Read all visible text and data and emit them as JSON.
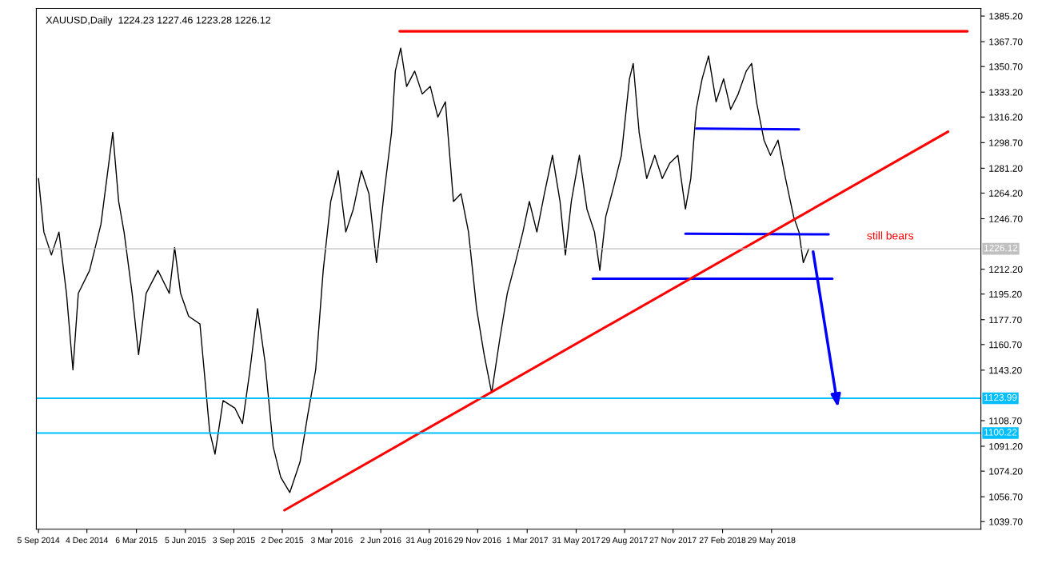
{
  "chart_data": {
    "type": "line",
    "title": "XAUUSD,Daily  1224.23 1227.46 1223.28 1226.12",
    "series": [
      {
        "color": "#000000",
        "x": [
          "2014-09-05",
          "2014-09-15",
          "2014-09-29",
          "2014-10-13",
          "2014-10-27",
          "2014-11-08",
          "2014-11-18",
          "2014-12-09",
          "2014-12-30",
          "2015-01-21",
          "2015-02-01",
          "2015-02-11",
          "2015-02-26",
          "2015-03-10",
          "2015-03-24",
          "2015-04-15",
          "2015-05-06",
          "2015-05-16",
          "2015-05-27",
          "2015-06-11",
          "2015-07-02",
          "2015-07-20",
          "2015-07-30",
          "2015-08-14",
          "2015-09-05",
          "2015-09-19",
          "2015-10-03",
          "2015-10-17",
          "2015-10-31",
          "2015-11-15",
          "2015-11-29",
          "2015-12-16",
          "2016-01-04",
          "2016-01-18",
          "2016-02-02",
          "2016-02-16",
          "2016-03-01",
          "2016-03-15",
          "2016-03-29",
          "2016-04-12",
          "2016-04-27",
          "2016-05-11",
          "2016-05-25",
          "2016-06-08",
          "2016-06-22",
          "2016-06-29",
          "2016-07-09",
          "2016-07-20",
          "2016-08-04",
          "2016-08-18",
          "2016-09-02",
          "2016-09-16",
          "2016-09-30",
          "2016-10-15",
          "2016-10-29",
          "2016-11-12",
          "2016-11-27",
          "2016-12-11",
          "2016-12-25",
          "2017-01-09",
          "2017-01-23",
          "2017-02-07",
          "2017-02-21",
          "2017-03-05",
          "2017-03-19",
          "2017-04-02",
          "2017-04-17",
          "2017-05-01",
          "2017-05-11",
          "2017-05-22",
          "2017-06-06",
          "2017-06-20",
          "2017-07-04",
          "2017-07-14",
          "2017-07-25",
          "2017-08-09",
          "2017-08-23",
          "2017-09-07",
          "2017-09-14",
          "2017-09-25",
          "2017-10-09",
          "2017-10-24",
          "2017-11-07",
          "2017-11-21",
          "2017-12-06",
          "2017-12-20",
          "2017-12-30",
          "2018-01-09",
          "2018-01-20",
          "2018-02-01",
          "2018-02-15",
          "2018-03-01",
          "2018-03-14",
          "2018-03-28",
          "2018-04-12",
          "2018-04-22",
          "2018-05-01",
          "2018-05-15",
          "2018-05-27",
          "2018-06-10",
          "2018-06-24",
          "2018-07-09",
          "2018-07-19",
          "2018-07-27",
          "2018-08-06"
        ],
        "values": [
          1274.2,
          1237.6,
          1221.9,
          1237.6,
          1195.7,
          1143.4,
          1195.7,
          1211.4,
          1242.8,
          1305.7,
          1258.5,
          1237.6,
          1195.7,
          1153.8,
          1195.7,
          1211.4,
          1195.7,
          1227.1,
          1195.7,
          1180.0,
          1174.8,
          1101.5,
          1085.8,
          1122.4,
          1117.2,
          1106.7,
          1143.4,
          1185.3,
          1148.6,
          1091.0,
          1070.1,
          1059.6,
          1080.5,
          1112.0,
          1143.4,
          1211.4,
          1258.5,
          1279.5,
          1237.6,
          1253.3,
          1279.5,
          1263.8,
          1216.7,
          1263.8,
          1305.7,
          1347.6,
          1363.3,
          1337.1,
          1347.6,
          1331.9,
          1337.1,
          1316.2,
          1326.6,
          1258.5,
          1263.8,
          1237.6,
          1185.3,
          1153.8,
          1127.6,
          1164.3,
          1195.7,
          1216.7,
          1237.6,
          1258.5,
          1237.6,
          1263.8,
          1290.0,
          1258.5,
          1221.9,
          1258.5,
          1290.0,
          1253.3,
          1237.6,
          1211.4,
          1248.1,
          1269.0,
          1290.0,
          1342.3,
          1352.8,
          1305.7,
          1274.2,
          1290.0,
          1274.2,
          1284.7,
          1290.0,
          1253.3,
          1274.2,
          1321.4,
          1342.3,
          1358.0,
          1326.6,
          1342.3,
          1321.4,
          1331.9,
          1347.6,
          1352.8,
          1326.6,
          1300.4,
          1290.0,
          1300.4,
          1274.2,
          1248.1,
          1237.6,
          1216.7,
          1226.1
        ]
      },
      {
        "type": "line",
        "color": "#ff0000",
        "x": [
          "2016-07-07",
          "2019-05-28"
        ],
        "values": [
          1374.8,
          1374.8
        ]
      },
      {
        "type": "line",
        "color": "#0000ff",
        "x": [
          "2018-01-09",
          "2018-07-19"
        ],
        "values": [
          1308.3,
          1307.8
        ]
      },
      {
        "type": "line",
        "color": "#0000ff",
        "x": [
          "2017-12-20",
          "2018-09-12"
        ],
        "values": [
          1236.5,
          1236.0
        ]
      },
      {
        "type": "line",
        "color": "#0000ff",
        "x": [
          "2017-07-01",
          "2018-09-19"
        ],
        "values": [
          1205.7,
          1205.7
        ]
      },
      {
        "type": "line",
        "color": "#ff0000",
        "x": [
          "2015-12-06",
          "2019-04-22"
        ],
        "values": [
          1047.5,
          1306.2
        ]
      }
    ],
    "xlim": [
      "2014-09-01",
      "2019-06-22"
    ],
    "xticks": [
      {
        "value": "2014-09-05",
        "label": "5 Sep 2014"
      },
      {
        "value": "2014-12-04",
        "label": "4 Dec 2014"
      },
      {
        "value": "2015-03-06",
        "label": "6 Mar 2015"
      },
      {
        "value": "2015-06-05",
        "label": "5 Jun 2015"
      },
      {
        "value": "2015-09-03",
        "label": "3 Sep 2015"
      },
      {
        "value": "2015-12-02",
        "label": "2 Dec 2015"
      },
      {
        "value": "2016-03-03",
        "label": "3 Mar 2016"
      },
      {
        "value": "2016-06-02",
        "label": "2 Jun 2016"
      },
      {
        "value": "2016-08-31",
        "label": "31 Aug 2016"
      },
      {
        "value": "2016-11-29",
        "label": "29 Nov 2016"
      },
      {
        "value": "2017-03-01",
        "label": "1 Mar 2017"
      },
      {
        "value": "2017-05-31",
        "label": "31 May 2017"
      },
      {
        "value": "2017-08-29",
        "label": "29 Aug 2017"
      },
      {
        "value": "2017-11-27",
        "label": "27 Nov 2017"
      },
      {
        "value": "2018-02-27",
        "label": "27 Feb 2018"
      },
      {
        "value": "2018-05-29",
        "label": "29 May 2018"
      }
    ],
    "ylim": [
      1034.5,
      1390.4
    ],
    "yticks": [
      {
        "value": 1385.2,
        "label": "1385.20"
      },
      {
        "value": 1367.7,
        "label": "1367.70"
      },
      {
        "value": 1350.7,
        "label": "1350.70"
      },
      {
        "value": 1333.2,
        "label": "1333.20"
      },
      {
        "value": 1316.2,
        "label": "1316.20"
      },
      {
        "value": 1298.7,
        "label": "1298.70"
      },
      {
        "value": 1281.2,
        "label": "1281.20"
      },
      {
        "value": 1264.2,
        "label": "1264.20"
      },
      {
        "value": 1246.7,
        "label": "1246.70"
      },
      {
        "value": 1212.2,
        "label": "1212.20"
      },
      {
        "value": 1195.2,
        "label": "1195.20"
      },
      {
        "value": 1177.7,
        "label": "1177.70"
      },
      {
        "value": 1160.7,
        "label": "1160.70"
      },
      {
        "value": 1143.2,
        "label": "1143.20"
      },
      {
        "value": 1108.7,
        "label": "1108.70"
      },
      {
        "value": 1091.2,
        "label": "1091.20"
      },
      {
        "value": 1074.2,
        "label": "1074.20"
      },
      {
        "value": 1056.7,
        "label": "1056.70"
      },
      {
        "value": 1039.7,
        "label": "1039.70"
      }
    ],
    "ref_lines": [
      {
        "axis": "y",
        "value": 1226.12,
        "label": "1226.12",
        "color": "#c0c0c0"
      },
      {
        "axis": "y",
        "value": 1123.99,
        "label": "1123.99",
        "color": "#00bfff"
      },
      {
        "axis": "y",
        "value": 1100.22,
        "label": "1100.22",
        "color": "#00bfff"
      }
    ],
    "annotations": [
      "still bears"
    ],
    "grid": false,
    "legend": false
  }
}
